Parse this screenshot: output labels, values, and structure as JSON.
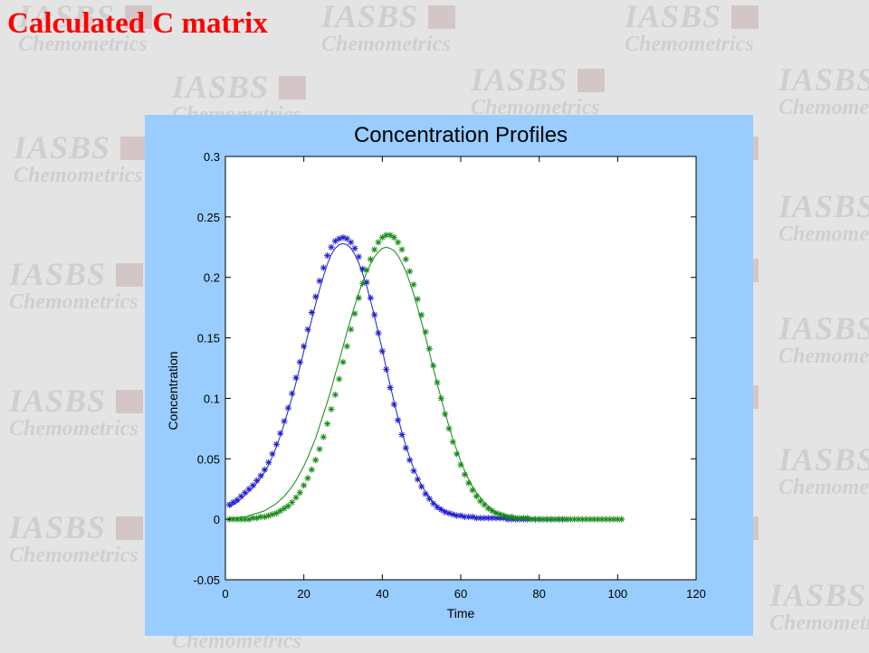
{
  "slide_title": "Calculated C matrix",
  "watermark": {
    "line1": "IASBS",
    "line2": "Chemometrics"
  },
  "colors": {
    "title": "#ff0000",
    "figure_background": "#99ccff",
    "axes_background": "#ffffff",
    "series_blue": "#1f1fcf",
    "series_green": "#158a15"
  },
  "chart_data": {
    "type": "line",
    "title": "Concentration Profiles",
    "xlabel": "Time",
    "ylabel": "Concentration",
    "xlim": [
      0,
      120
    ],
    "ylim": [
      -0.05,
      0.3
    ],
    "xticks": [
      0,
      20,
      40,
      60,
      80,
      100,
      120
    ],
    "xtick_labels": [
      "0",
      "20",
      "40",
      "60",
      "80",
      "100",
      "120"
    ],
    "yticks": [
      -0.05,
      0,
      0.05,
      0.1,
      0.15,
      0.2,
      0.25,
      0.3
    ],
    "ytick_labels": [
      "-0.05",
      "0",
      "0.05",
      "0.1",
      "0.15",
      "0.2",
      "0.25",
      "0.3"
    ],
    "grid": false,
    "legend": "none",
    "series": [
      {
        "style": "markers",
        "marker": "*",
        "color": "#1f1fcf",
        "x": [
          1,
          2,
          3,
          4,
          5,
          6,
          7,
          8,
          9,
          10,
          11,
          12,
          13,
          14,
          15,
          16,
          17,
          18,
          19,
          20,
          21,
          22,
          23,
          24,
          25,
          26,
          27,
          28,
          29,
          30,
          31,
          32,
          33,
          34,
          35,
          36,
          37,
          38,
          39,
          40,
          41,
          42,
          43,
          44,
          45,
          46,
          47,
          48,
          49,
          50,
          51,
          52,
          53,
          54,
          55,
          56,
          57,
          58,
          59,
          60,
          61,
          62,
          63,
          64,
          65,
          66,
          67,
          68,
          69,
          70,
          71,
          72,
          73,
          74,
          75,
          76,
          77,
          78,
          79,
          80,
          81,
          82,
          83,
          84,
          85,
          86,
          87
        ],
        "y": [
          0.012,
          0.014,
          0.016,
          0.019,
          0.022,
          0.025,
          0.028,
          0.032,
          0.036,
          0.041,
          0.047,
          0.054,
          0.062,
          0.071,
          0.081,
          0.092,
          0.104,
          0.117,
          0.13,
          0.143,
          0.157,
          0.171,
          0.184,
          0.197,
          0.208,
          0.218,
          0.225,
          0.23,
          0.232,
          0.233,
          0.232,
          0.229,
          0.224,
          0.217,
          0.207,
          0.196,
          0.183,
          0.169,
          0.154,
          0.139,
          0.124,
          0.109,
          0.095,
          0.082,
          0.07,
          0.059,
          0.049,
          0.04,
          0.033,
          0.027,
          0.021,
          0.017,
          0.013,
          0.01,
          0.008,
          0.006,
          0.005,
          0.004,
          0.003,
          0.003,
          0.002,
          0.002,
          0.002,
          0.001,
          0.001,
          0.001,
          0.001,
          0.001,
          0.001,
          0.001,
          0.001,
          0,
          0,
          0,
          0,
          0,
          0,
          0,
          0,
          0,
          0,
          0,
          0,
          0,
          0,
          0,
          0
        ]
      },
      {
        "style": "line",
        "color": "#1f1fcf",
        "x": [
          1,
          2,
          3,
          4,
          5,
          6,
          7,
          8,
          9,
          10,
          11,
          12,
          13,
          14,
          15,
          16,
          17,
          18,
          19,
          20,
          21,
          22,
          23,
          24,
          25,
          26,
          27,
          28,
          29,
          30,
          31,
          32,
          33,
          34,
          35,
          36,
          37,
          38,
          39,
          40,
          41,
          42,
          43,
          44,
          45,
          46,
          47,
          48,
          49,
          50,
          51,
          52,
          53,
          54,
          55,
          56,
          57,
          58,
          59,
          60,
          61,
          62,
          63,
          64,
          65,
          66,
          67,
          68,
          69,
          70,
          71,
          72,
          73,
          74,
          75,
          76,
          77,
          78,
          79,
          80,
          81,
          82,
          83,
          84,
          85,
          86,
          87
        ],
        "y": [
          0.01,
          0.012,
          0.014,
          0.017,
          0.02,
          0.023,
          0.026,
          0.03,
          0.034,
          0.039,
          0.045,
          0.052,
          0.06,
          0.069,
          0.079,
          0.09,
          0.101,
          0.113,
          0.126,
          0.139,
          0.152,
          0.165,
          0.178,
          0.19,
          0.201,
          0.211,
          0.219,
          0.224,
          0.227,
          0.228,
          0.227,
          0.224,
          0.219,
          0.212,
          0.203,
          0.193,
          0.181,
          0.168,
          0.154,
          0.14,
          0.125,
          0.111,
          0.097,
          0.084,
          0.072,
          0.061,
          0.051,
          0.042,
          0.035,
          0.028,
          0.023,
          0.018,
          0.014,
          0.011,
          0.009,
          0.007,
          0.005,
          0.004,
          0.003,
          0.003,
          0.002,
          0.002,
          0.001,
          0.001,
          0.001,
          0.001,
          0.001,
          0.001,
          0.001,
          0,
          0,
          0,
          0,
          0,
          0,
          0,
          0,
          0,
          0,
          0,
          0,
          0,
          0,
          0,
          0,
          0,
          0
        ]
      },
      {
        "style": "markers",
        "marker": "*",
        "color": "#158a15",
        "x": [
          1,
          2,
          3,
          4,
          5,
          6,
          7,
          8,
          9,
          10,
          11,
          12,
          13,
          14,
          15,
          16,
          17,
          18,
          19,
          20,
          21,
          22,
          23,
          24,
          25,
          26,
          27,
          28,
          29,
          30,
          31,
          32,
          33,
          34,
          35,
          36,
          37,
          38,
          39,
          40,
          41,
          42,
          43,
          44,
          45,
          46,
          47,
          48,
          49,
          50,
          51,
          52,
          53,
          54,
          55,
          56,
          57,
          58,
          59,
          60,
          61,
          62,
          63,
          64,
          65,
          66,
          67,
          68,
          69,
          70,
          71,
          72,
          73,
          74,
          75,
          76,
          77,
          78,
          79,
          80,
          81,
          82,
          83,
          84,
          85,
          86,
          87,
          88,
          89,
          90,
          91,
          92,
          93,
          94,
          95,
          96,
          97,
          98,
          99,
          100,
          101
        ],
        "y": [
          0,
          0,
          0,
          0,
          0,
          0,
          0.001,
          0.001,
          0.002,
          0.002,
          0.003,
          0.004,
          0.005,
          0.007,
          0.009,
          0.011,
          0.014,
          0.018,
          0.022,
          0.028,
          0.034,
          0.041,
          0.049,
          0.058,
          0.068,
          0.079,
          0.091,
          0.103,
          0.116,
          0.13,
          0.143,
          0.157,
          0.17,
          0.183,
          0.195,
          0.206,
          0.215,
          0.223,
          0.229,
          0.233,
          0.235,
          0.235,
          0.233,
          0.229,
          0.223,
          0.215,
          0.205,
          0.194,
          0.182,
          0.169,
          0.155,
          0.141,
          0.127,
          0.113,
          0.1,
          0.087,
          0.075,
          0.064,
          0.054,
          0.045,
          0.037,
          0.03,
          0.024,
          0.019,
          0.015,
          0.012,
          0.009,
          0.007,
          0.005,
          0.004,
          0.003,
          0.002,
          0.002,
          0.001,
          0.001,
          0.001,
          0.001,
          0,
          0,
          0,
          0,
          0,
          0,
          0,
          0,
          0,
          0,
          0,
          0,
          0,
          0,
          0,
          0,
          0,
          0,
          0,
          0,
          0,
          0,
          0,
          0
        ]
      },
      {
        "style": "line",
        "color": "#158a15",
        "x": [
          1,
          2,
          3,
          4,
          5,
          6,
          7,
          8,
          9,
          10,
          11,
          12,
          13,
          14,
          15,
          16,
          17,
          18,
          19,
          20,
          21,
          22,
          23,
          24,
          25,
          26,
          27,
          28,
          29,
          30,
          31,
          32,
          33,
          34,
          35,
          36,
          37,
          38,
          39,
          40,
          41,
          42,
          43,
          44,
          45,
          46,
          47,
          48,
          49,
          50,
          51,
          52,
          53,
          54,
          55,
          56,
          57,
          58,
          59,
          60,
          61,
          62,
          63,
          64,
          65,
          66,
          67,
          68,
          69,
          70,
          71,
          72,
          73,
          74,
          75,
          76,
          77,
          78,
          79,
          80,
          81,
          82,
          83,
          84,
          85,
          86,
          87
        ],
        "y": [
          0.001,
          0.001,
          0.001,
          0.002,
          0.002,
          0.003,
          0.004,
          0.005,
          0.006,
          0.007,
          0.009,
          0.011,
          0.013,
          0.016,
          0.019,
          0.023,
          0.027,
          0.032,
          0.038,
          0.044,
          0.051,
          0.059,
          0.067,
          0.077,
          0.087,
          0.097,
          0.108,
          0.12,
          0.131,
          0.143,
          0.155,
          0.166,
          0.177,
          0.187,
          0.196,
          0.204,
          0.211,
          0.217,
          0.221,
          0.224,
          0.225,
          0.224,
          0.222,
          0.218,
          0.212,
          0.205,
          0.196,
          0.186,
          0.175,
          0.163,
          0.151,
          0.138,
          0.125,
          0.112,
          0.1,
          0.088,
          0.077,
          0.066,
          0.057,
          0.048,
          0.04,
          0.033,
          0.027,
          0.022,
          0.018,
          0.014,
          0.011,
          0.008,
          0.006,
          0.005,
          0.004,
          0.003,
          0.002,
          0.002,
          0.001,
          0.001,
          0.001,
          0.001,
          0,
          0,
          0,
          0,
          0,
          0,
          0,
          0,
          0
        ]
      }
    ]
  }
}
